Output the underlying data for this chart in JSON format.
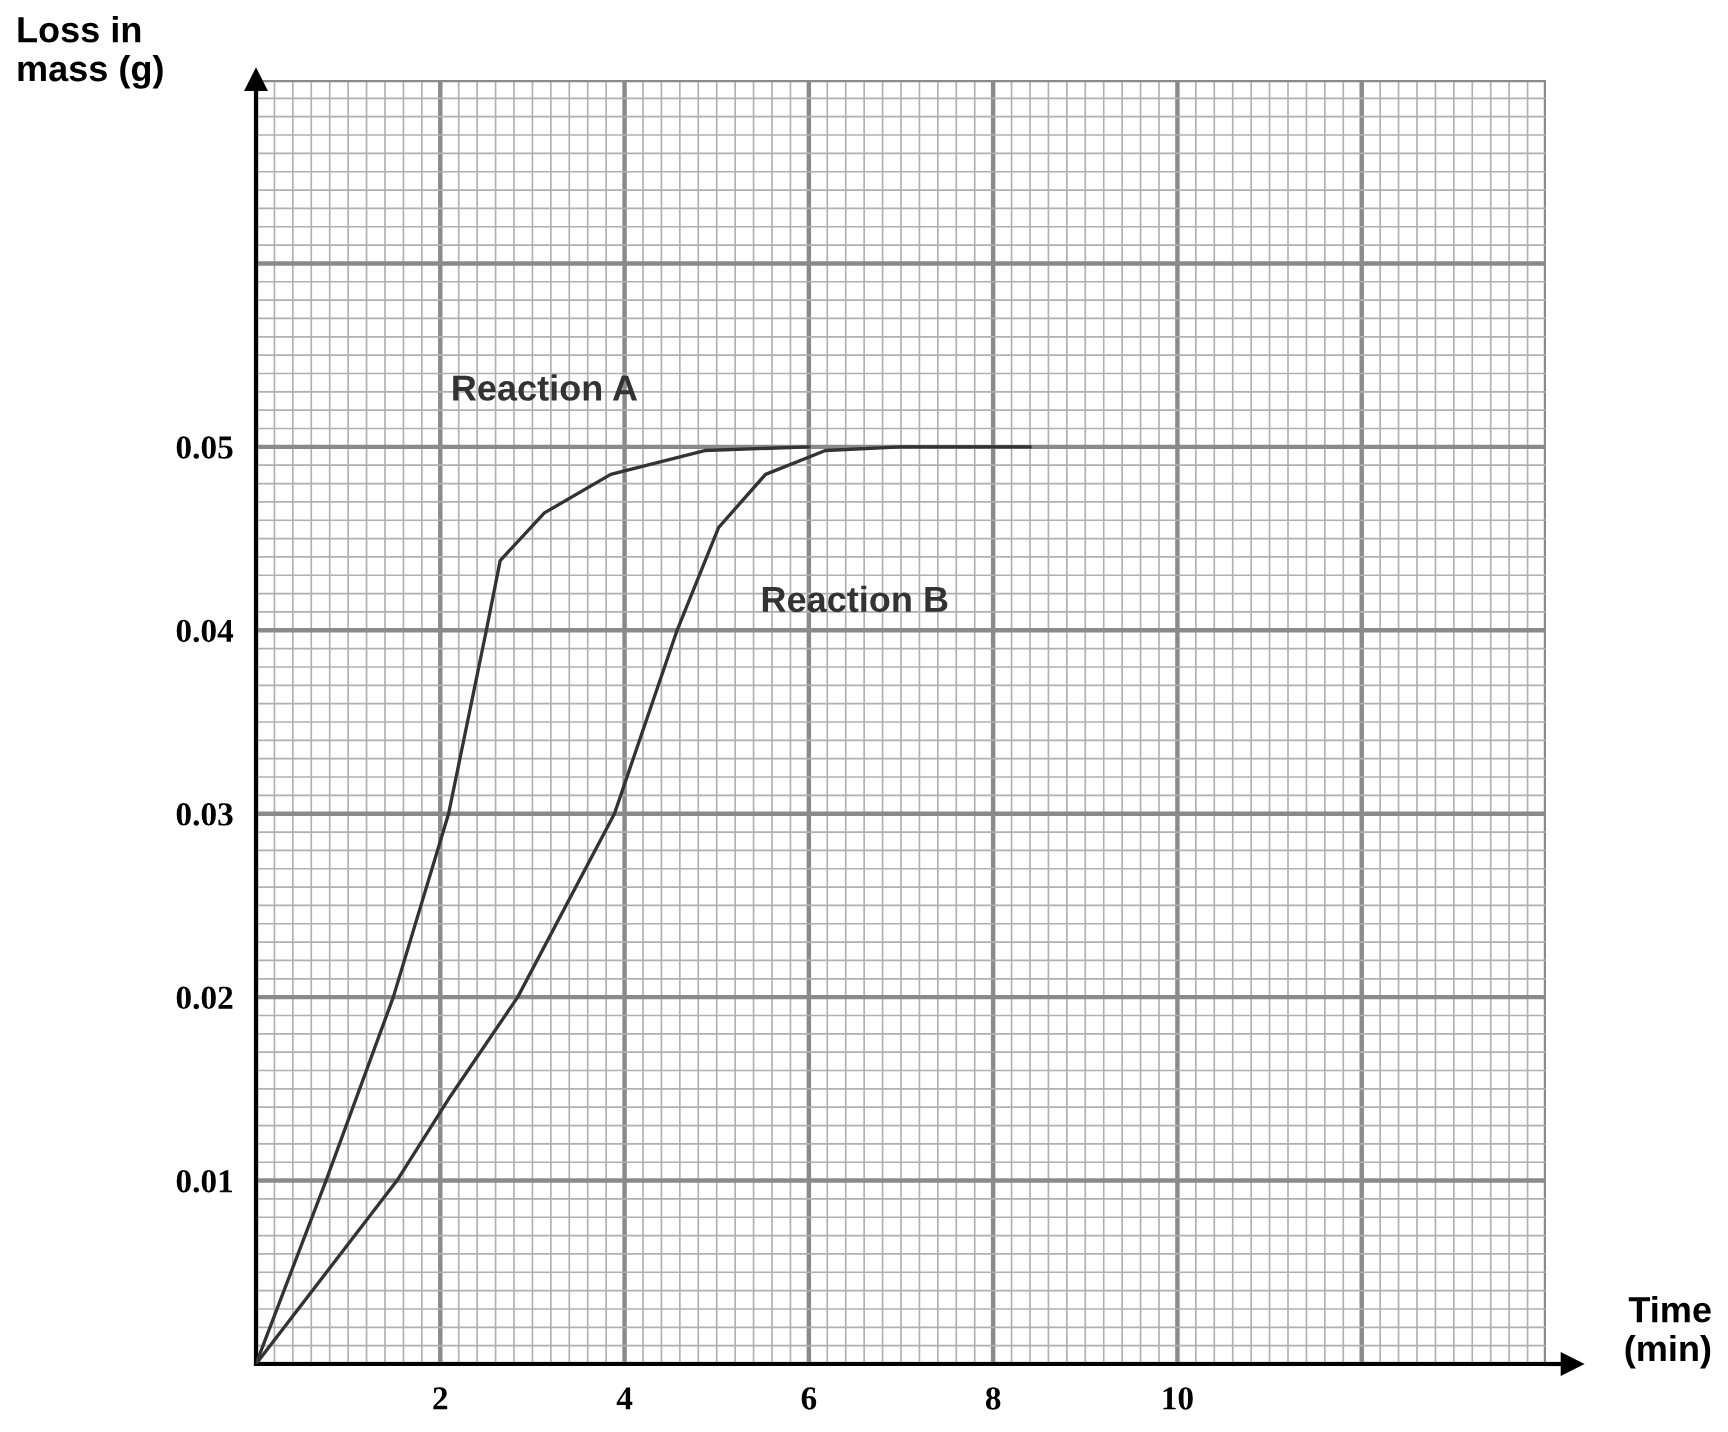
{
  "chart_data": {
    "type": "line",
    "xlabel": "Time\n(min)",
    "ylabel": "Loss in\nmass (g)",
    "xlim": [
      0,
      14
    ],
    "ylim": [
      0,
      0.07
    ],
    "xticks": [
      2,
      4,
      6,
      8,
      10,
      {
        "value": 12,
        "label": null
      },
      {
        "value": 14,
        "label": null
      }
    ],
    "yticks": [
      0.01,
      0.02,
      0.03,
      0.04,
      0.05,
      {
        "value": 0.06,
        "label": null
      },
      {
        "value": 0.07,
        "label": null
      }
    ],
    "grid": true,
    "line_style": "solid",
    "series": [
      {
        "name": "Reaction A",
        "color": "#333333",
        "x": [
          0,
          0.76,
          1.49,
          2.09,
          2.5,
          2.65,
          3.13,
          3.85,
          4.87,
          6
        ],
        "values": [
          0,
          0.01,
          0.02,
          0.03,
          0.04,
          0.0438,
          0.0464,
          0.0485,
          0.0498,
          0.05
        ]
      },
      {
        "name": "Reaction B",
        "color": "#333333",
        "x": [
          0,
          1.53,
          2.11,
          2.84,
          3.89,
          4.57,
          5.02,
          5.53,
          6.18,
          7,
          8.4
        ],
        "values": [
          0,
          0.01,
          0.0146,
          0.02,
          0.03,
          0.04,
          0.0456,
          0.0485,
          0.0498,
          0.05,
          0.05
        ]
      }
    ]
  }
}
